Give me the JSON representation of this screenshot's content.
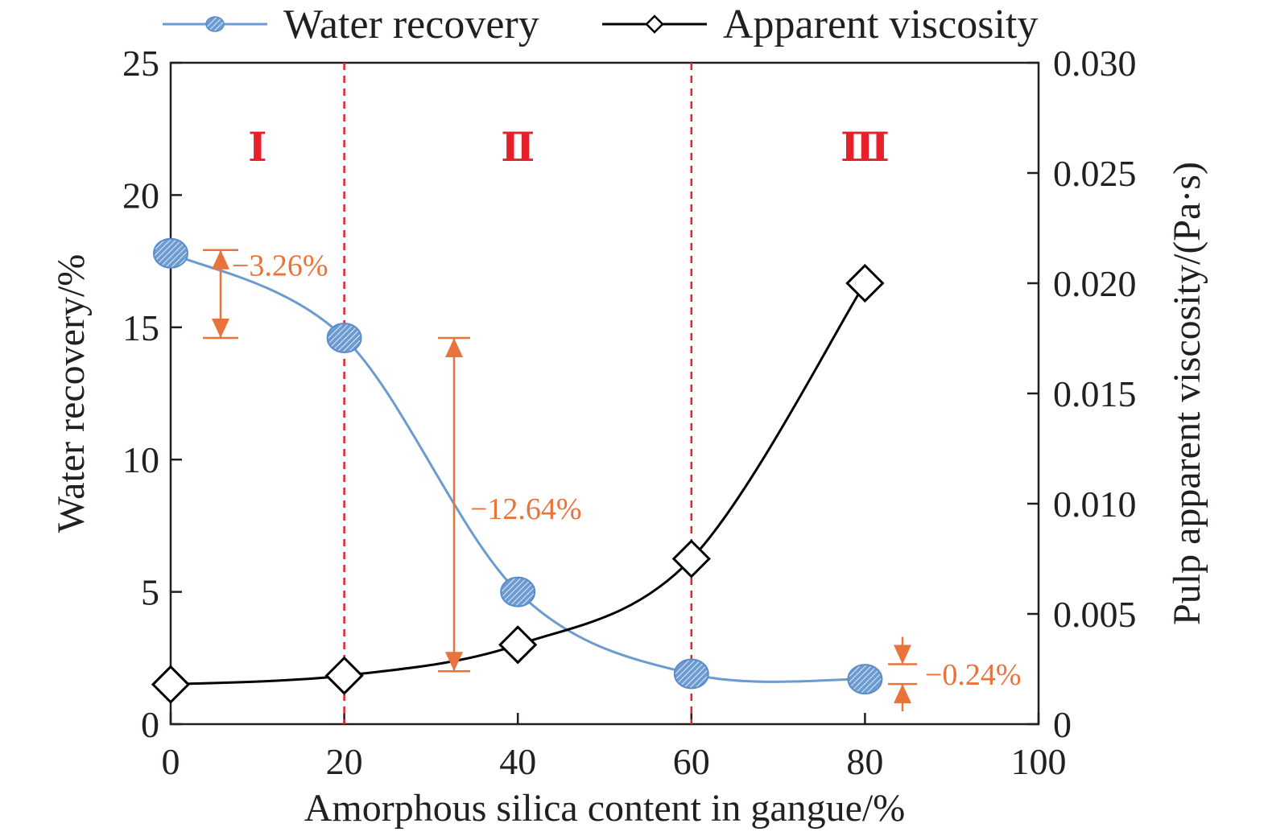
{
  "chart_data": {
    "type": "line",
    "xlabel": "Amorphous silica content in gangue/%",
    "ylabel": "Water recovery/%",
    "y2label": "Pulp apparent viscosity/(Pa·s)",
    "xlim": [
      0,
      100
    ],
    "ylim": [
      0,
      25
    ],
    "y2lim": [
      0,
      0.03
    ],
    "x_ticks": [
      "0",
      "20",
      "40",
      "60",
      "80",
      "100"
    ],
    "y_ticks": [
      "0",
      "5",
      "10",
      "15",
      "20",
      "25"
    ],
    "y2_ticks": [
      "0",
      "0.005",
      "0.010",
      "0.015",
      "0.020",
      "0.025",
      "0.030"
    ],
    "grid": false,
    "legend_position": "top",
    "series": [
      {
        "name": "Water recovery",
        "axis": "left",
        "marker": "circle",
        "color": "#6b9bd1",
        "x": [
          0,
          20,
          40,
          60,
          80
        ],
        "y": [
          17.8,
          14.6,
          5.0,
          1.9,
          1.7
        ]
      },
      {
        "name": "Apparent viscosity",
        "axis": "right",
        "marker": "diamond",
        "color": "#000000",
        "x": [
          0,
          20,
          40,
          60,
          80
        ],
        "y": [
          0.0018,
          0.0022,
          0.0036,
          0.0075,
          0.02
        ]
      }
    ],
    "regions": [
      {
        "label": "Ⅰ",
        "x_range": [
          0,
          20
        ]
      },
      {
        "label": "Ⅱ",
        "x_range": [
          20,
          60
        ]
      },
      {
        "label": "Ⅲ",
        "x_range": [
          60,
          100
        ]
      }
    ],
    "region_boundaries": [
      20,
      60
    ],
    "annotations": [
      {
        "label": "−3.26%",
        "y_from": 17.8,
        "y_to": 14.6
      },
      {
        "label": "−12.64%",
        "y_from": 14.6,
        "y_to": 2.0
      },
      {
        "label": "−0.24%",
        "y_from": 1.9,
        "y_to": 1.7
      }
    ],
    "colors": {
      "water": "#6b9bd1",
      "viscosity": "#000000",
      "annotation": "#e8743c",
      "boundary": "#e8202a"
    }
  }
}
